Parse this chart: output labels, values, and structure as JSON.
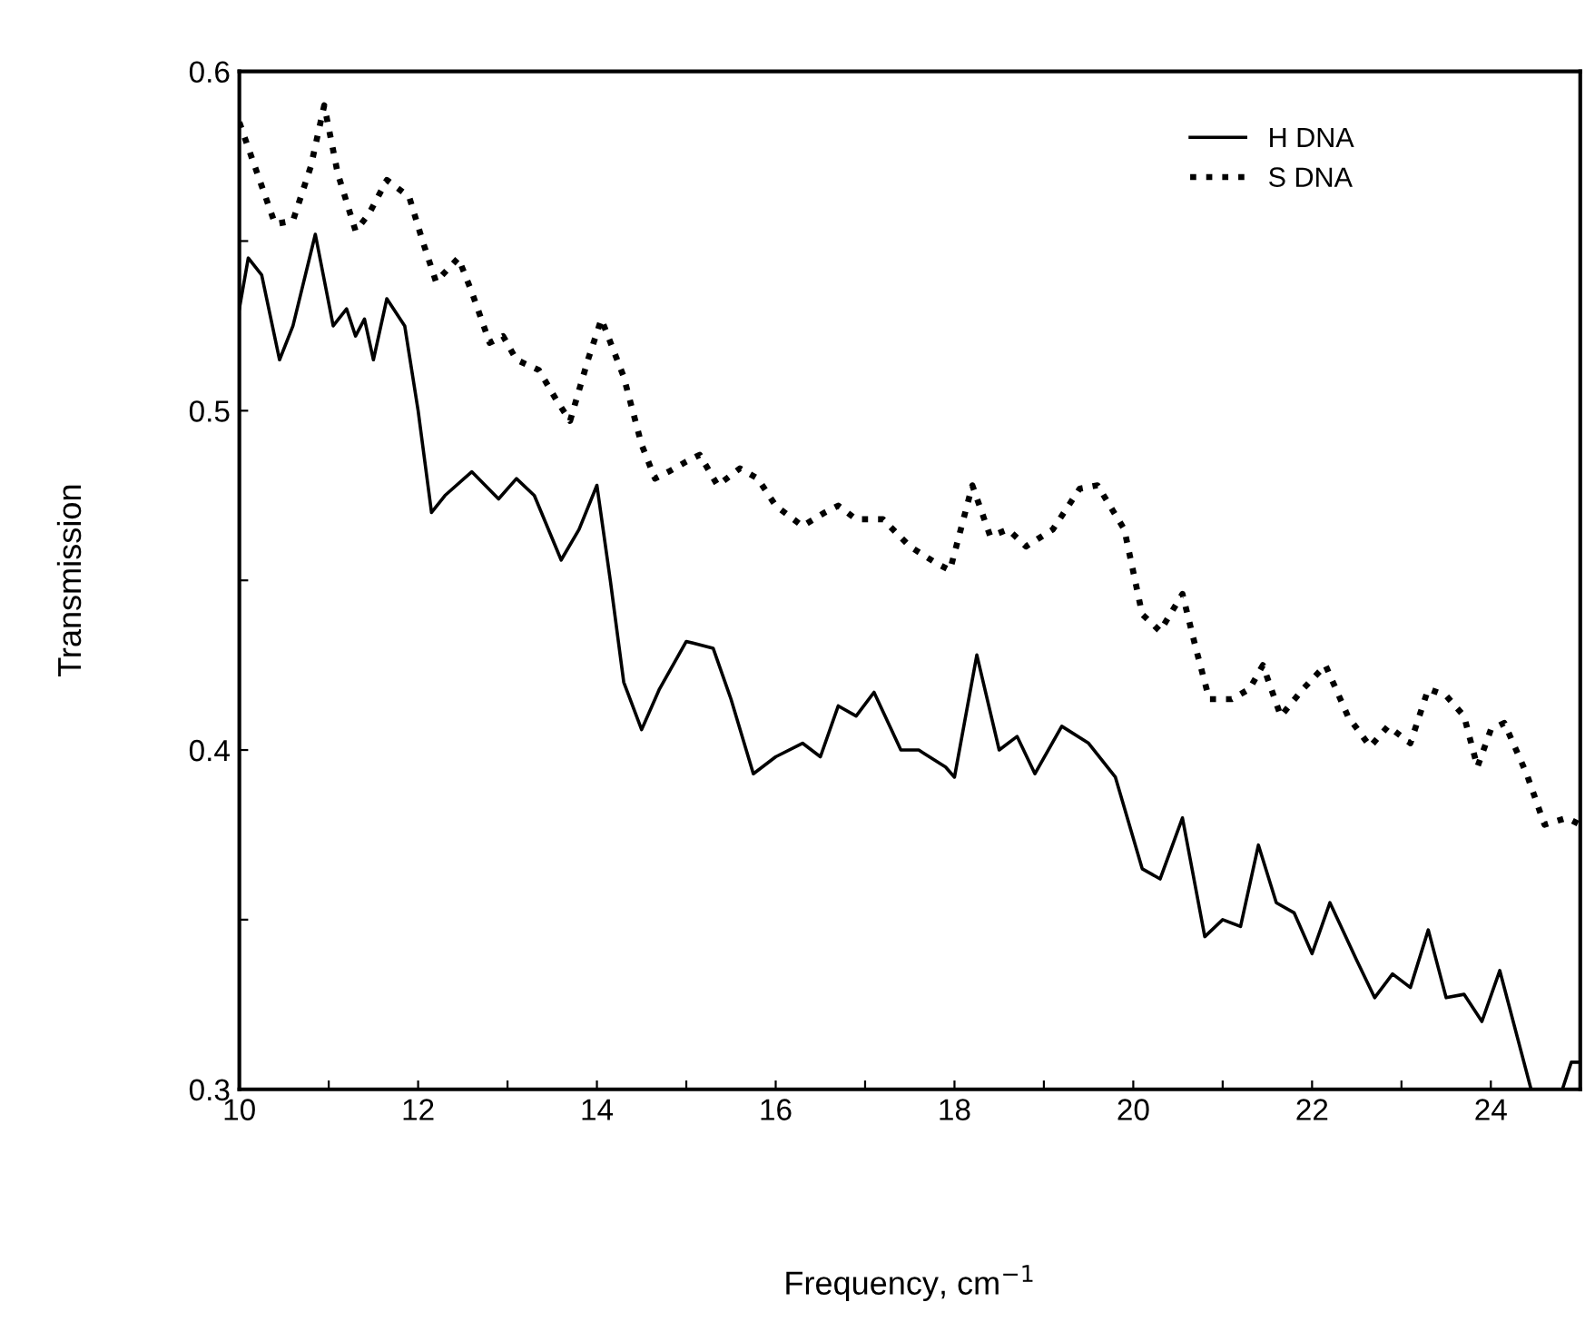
{
  "chart_data": {
    "type": "line",
    "xlabel": "Frequency, cm$^{−1}$",
    "ylabel": "Transmission",
    "xlim": [
      10,
      25
    ],
    "ylim": [
      0.3,
      0.6
    ],
    "xticks": [
      10,
      {
        "value": 11,
        "label": null
      },
      12,
      {
        "value": 13,
        "label": null
      },
      14,
      {
        "value": 15,
        "label": null
      },
      16,
      {
        "value": 17,
        "label": null
      },
      18,
      {
        "value": 19,
        "label": null
      },
      20,
      {
        "value": 21,
        "label": null
      },
      22,
      {
        "value": 23,
        "label": null
      },
      24
    ],
    "yticks": [
      0.3,
      {
        "value": 0.35,
        "label": null
      },
      0.4,
      {
        "value": 0.45,
        "label": null
      },
      0.5,
      {
        "value": 0.55,
        "label": null
      },
      0.6
    ],
    "legend": "top right",
    "grid": false,
    "series": [
      {
        "name": "H DNA",
        "color": "#000000",
        "line_style": "solid",
        "x": [
          10.0,
          10.1,
          10.25,
          10.45,
          10.6,
          10.85,
          11.05,
          11.2,
          11.3,
          11.4,
          11.5,
          11.65,
          11.85,
          12.0,
          12.15,
          12.3,
          12.6,
          12.9,
          13.1,
          13.3,
          13.6,
          13.8,
          14.0,
          14.15,
          14.3,
          14.5,
          14.7,
          15.0,
          15.3,
          15.5,
          15.75,
          16.0,
          16.3,
          16.5,
          16.7,
          16.9,
          17.1,
          17.4,
          17.6,
          17.9,
          18.0,
          18.25,
          18.5,
          18.7,
          18.9,
          19.2,
          19.5,
          19.8,
          20.1,
          20.3,
          20.55,
          20.8,
          21.0,
          21.2,
          21.4,
          21.6,
          21.8,
          22.0,
          22.2,
          22.5,
          22.7,
          22.9,
          23.1,
          23.3,
          23.5,
          23.7,
          23.9,
          24.1,
          24.45,
          24.65,
          24.8,
          24.9,
          25.0
        ],
        "values": [
          0.53,
          0.545,
          0.54,
          0.515,
          0.525,
          0.552,
          0.525,
          0.53,
          0.522,
          0.527,
          0.515,
          0.533,
          0.525,
          0.5,
          0.47,
          0.475,
          0.482,
          0.474,
          0.48,
          0.475,
          0.456,
          0.465,
          0.478,
          0.45,
          0.42,
          0.406,
          0.418,
          0.432,
          0.43,
          0.415,
          0.393,
          0.398,
          0.402,
          0.398,
          0.413,
          0.41,
          0.417,
          0.4,
          0.4,
          0.395,
          0.392,
          0.428,
          0.4,
          0.404,
          0.393,
          0.407,
          0.402,
          0.392,
          0.365,
          0.362,
          0.38,
          0.345,
          0.35,
          0.348,
          0.372,
          0.355,
          0.352,
          0.34,
          0.355,
          0.338,
          0.327,
          0.334,
          0.33,
          0.347,
          0.327,
          0.328,
          0.32,
          0.335,
          0.3,
          null,
          0.3,
          0.308,
          0.308
        ]
      },
      {
        "name": "S DNA",
        "color": "#000000",
        "line_style": "dotted",
        "x": [
          10.0,
          10.2,
          10.4,
          10.6,
          10.8,
          10.95,
          11.1,
          11.3,
          11.45,
          11.65,
          11.9,
          12.05,
          12.2,
          12.45,
          12.6,
          12.8,
          12.95,
          13.1,
          13.35,
          13.55,
          13.7,
          13.9,
          14.05,
          14.3,
          14.5,
          14.65,
          14.8,
          15.0,
          15.15,
          15.35,
          15.6,
          15.8,
          16.0,
          16.3,
          16.55,
          16.7,
          16.9,
          17.2,
          17.5,
          17.8,
          17.95,
          18.1,
          18.2,
          18.4,
          18.6,
          18.8,
          19.1,
          19.4,
          19.6,
          19.9,
          20.1,
          20.3,
          20.55,
          20.7,
          20.85,
          21.1,
          21.3,
          21.45,
          21.65,
          21.9,
          22.15,
          22.4,
          22.65,
          22.85,
          23.1,
          23.3,
          23.5,
          23.7,
          23.85,
          24.0,
          24.15,
          24.4,
          24.6,
          24.85,
          25.0
        ],
        "values": [
          0.585,
          0.57,
          0.555,
          0.556,
          0.572,
          0.59,
          0.57,
          0.553,
          0.558,
          0.568,
          0.563,
          0.55,
          0.538,
          0.545,
          0.535,
          0.52,
          0.522,
          0.515,
          0.512,
          0.503,
          0.497,
          0.515,
          0.527,
          0.51,
          0.49,
          0.48,
          0.482,
          0.485,
          0.487,
          0.478,
          0.483,
          0.48,
          0.472,
          0.466,
          0.47,
          0.472,
          0.468,
          0.468,
          0.46,
          0.455,
          0.453,
          0.468,
          0.478,
          0.463,
          0.465,
          0.46,
          0.465,
          0.477,
          0.478,
          0.465,
          0.44,
          0.435,
          0.446,
          0.43,
          0.415,
          0.415,
          0.418,
          0.425,
          0.41,
          0.418,
          0.425,
          0.41,
          0.401,
          0.407,
          0.402,
          0.418,
          0.416,
          0.41,
          0.395,
          0.406,
          0.408,
          0.393,
          0.378,
          0.38,
          0.378
        ]
      }
    ]
  }
}
